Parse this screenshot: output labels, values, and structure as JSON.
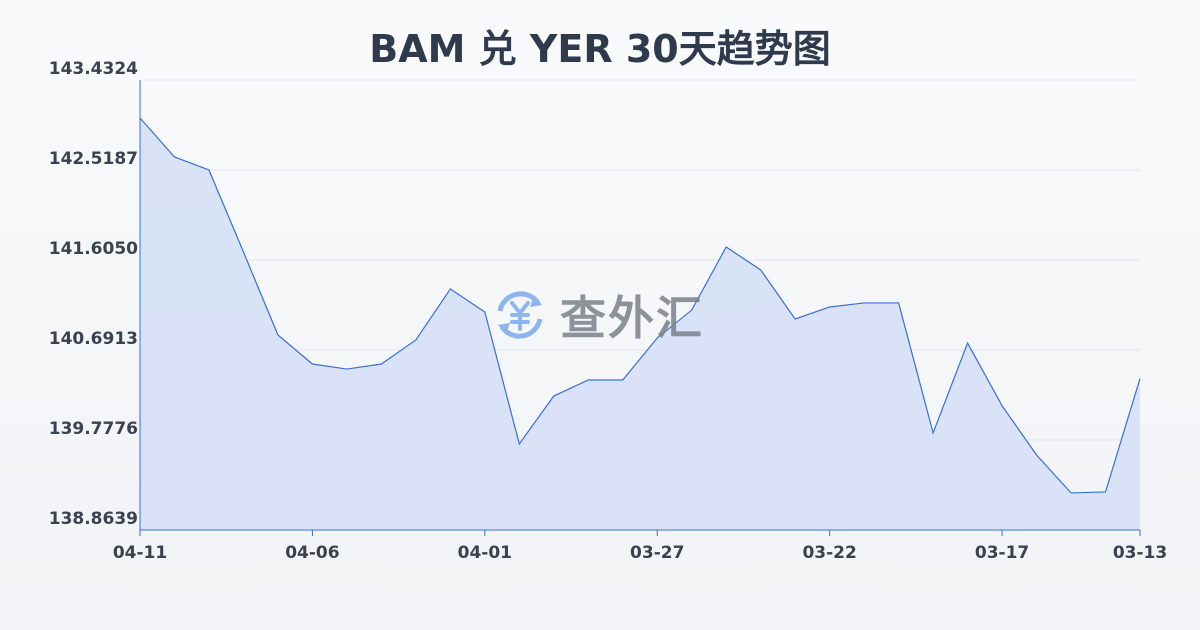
{
  "chart_data": {
    "type": "area",
    "title": "BAM 兑 YER 30天趋势图",
    "xlabel": "",
    "ylabel": "",
    "x_tick_labels": [
      "04-11",
      "04-06",
      "04-01",
      "03-27",
      "03-22",
      "03-17",
      "03-13"
    ],
    "y_tick_labels": [
      "143.4324",
      "142.5187",
      "141.6050",
      "140.6913",
      "139.7776",
      "138.8639"
    ],
    "ylim": [
      138.8639,
      143.4324
    ],
    "grid": true,
    "x": [
      "04-11",
      "04-10",
      "04-09",
      "04-08",
      "04-07",
      "04-06",
      "04-05",
      "04-04",
      "04-03",
      "04-02",
      "04-01",
      "03-31",
      "03-30",
      "03-29",
      "03-28",
      "03-27",
      "03-26",
      "03-25",
      "03-24",
      "03-23",
      "03-22",
      "03-21",
      "03-20",
      "03-19",
      "03-18",
      "03-17",
      "03-16",
      "03-15",
      "03-14",
      "03-13"
    ],
    "values": [
      143.047,
      142.651,
      142.519,
      141.686,
      140.844,
      140.549,
      140.498,
      140.549,
      140.793,
      141.311,
      141.077,
      139.737,
      140.224,
      140.387,
      140.387,
      140.813,
      141.097,
      141.737,
      141.504,
      141.006,
      141.128,
      141.169,
      141.169,
      139.849,
      140.762,
      140.125,
      139.625,
      139.24,
      139.25,
      140.402
    ],
    "colors": {
      "line": "#3a6fd8",
      "fill": "#d6e0f5"
    }
  },
  "watermark": {
    "text": "查外汇",
    "icon": "yen-exchange-icon"
  }
}
